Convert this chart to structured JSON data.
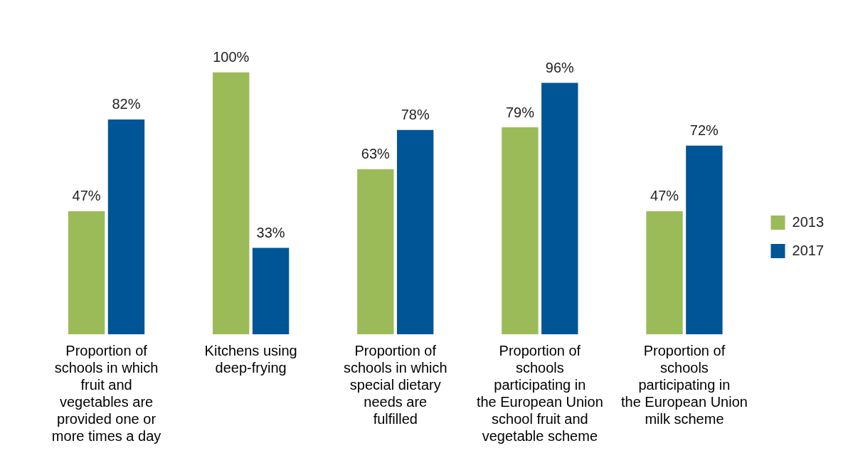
{
  "chart_data": {
    "type": "bar",
    "categories": [
      "Proportion of schools in which fruit and vegetables are provided one or more times a day",
      "Kitchens using deep-frying",
      "Proportion of schools in which special dietary needs are fulfilled",
      "Proportion of schools participating in the European Union school fruit and vegetable scheme",
      "Proportion of schools participating in the European Union milk scheme"
    ],
    "series": [
      {
        "name": "2013",
        "color": "#9bbb59",
        "values": [
          47,
          100,
          63,
          79,
          47
        ],
        "value_labels": [
          "47%",
          "100%",
          "63%",
          "79%",
          "47%"
        ]
      },
      {
        "name": "2017",
        "color": "#005596",
        "values": [
          82,
          33,
          78,
          96,
          72
        ],
        "value_labels": [
          "82%",
          "33%",
          "78%",
          "96%",
          "72%"
        ]
      }
    ],
    "legend": "right",
    "grid": false
  }
}
